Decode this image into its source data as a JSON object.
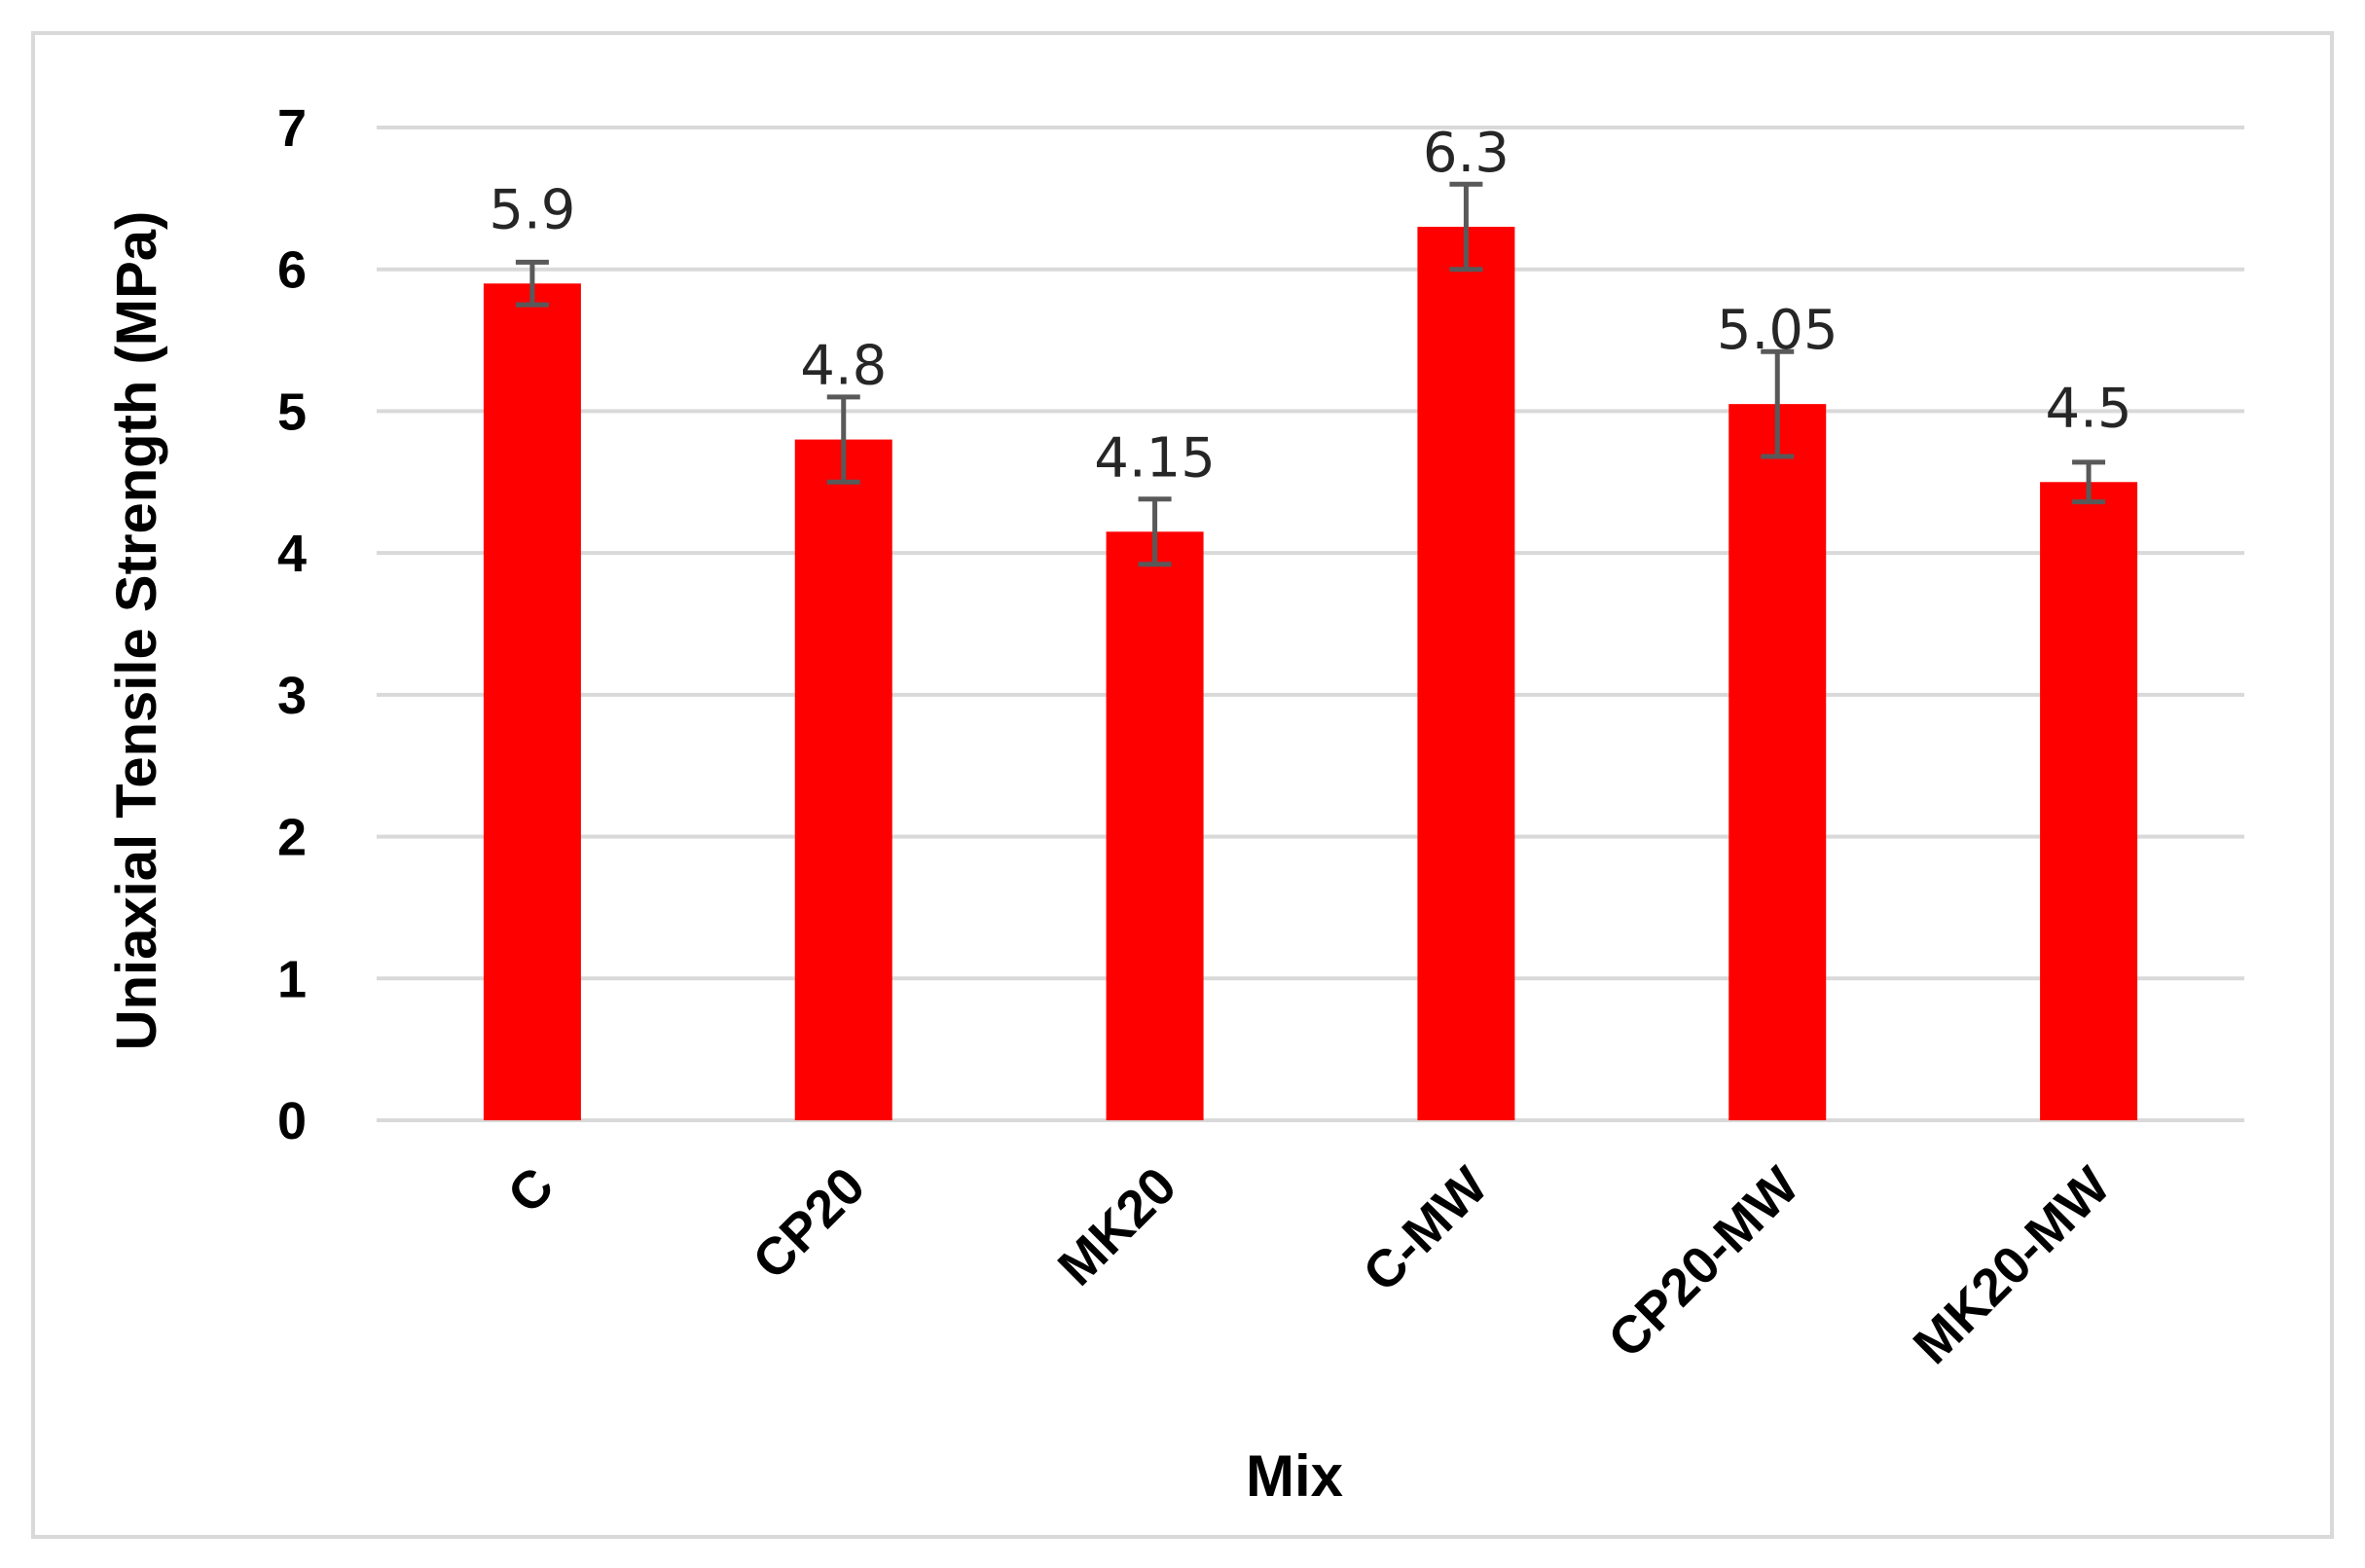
{
  "chart_data": {
    "type": "bar",
    "categories": [
      "C",
      "CP20",
      "MK20",
      "C-MW",
      "CP20-MW",
      "MK20-MW"
    ],
    "values": [
      5.9,
      4.8,
      4.15,
      6.3,
      5.05,
      4.5
    ],
    "error_bars": [
      0.15,
      0.3,
      0.23,
      0.3,
      0.37,
      0.14
    ],
    "data_labels": [
      "5.9",
      "4.8",
      "4.15",
      "6.3",
      "5.05",
      "4.5"
    ],
    "xlabel": "Mix",
    "ylabel": "Uniaxial Tensile Strength (MPa)",
    "ylim": [
      0,
      7
    ],
    "yticks": [
      0,
      1,
      2,
      3,
      4,
      5,
      6,
      7
    ],
    "grid": true,
    "legend": "none"
  },
  "colors": {
    "bar": "#ff0000",
    "error_bar": "#595959",
    "grid": "#d9d9d9",
    "frame": "#d9d9d9"
  }
}
